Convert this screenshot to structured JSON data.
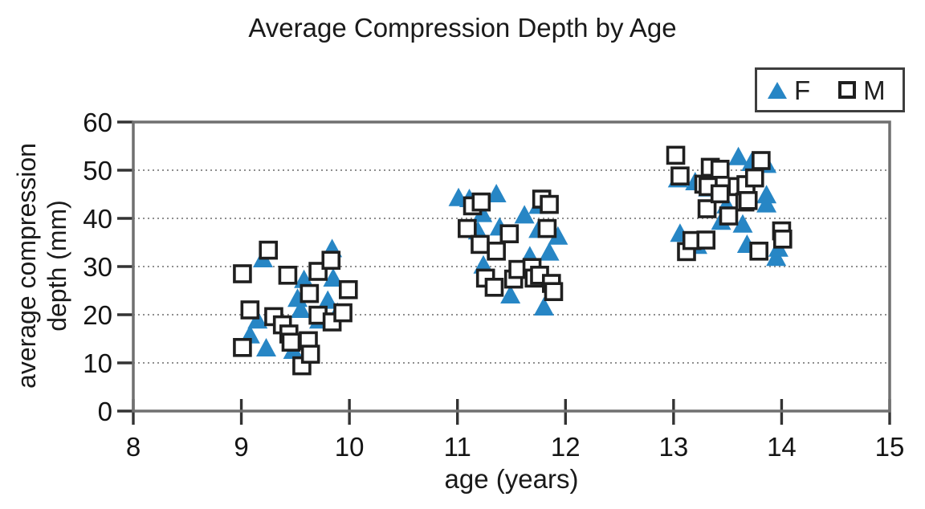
{
  "title": "Average Compression Depth by Age",
  "chart_data": {
    "type": "scatter",
    "title": "Average Compression Depth by Age",
    "xlabel": "age (years)",
    "ylabel": "average compression depth (mm)",
    "ylabel_lines": [
      "average compression",
      "depth (mm)"
    ],
    "xlim": [
      8,
      15
    ],
    "ylim": [
      0,
      60
    ],
    "xticks": [
      8,
      9,
      10,
      11,
      12,
      13,
      14,
      15
    ],
    "yticks": [
      0,
      10,
      20,
      30,
      40,
      50,
      60
    ],
    "grid": {
      "horizontal": true,
      "style": "dotted",
      "color": "#8f8f8f"
    },
    "legend_position": "top-right",
    "colors": {
      "f_fill": "#2786c5",
      "m_stroke": "#1f1f1f",
      "m_fill": "#ffffff",
      "frame": "#707070",
      "tick": "#333333",
      "text": "#141414"
    },
    "series": [
      {
        "name": "F",
        "marker": "triangle",
        "fill": "#2786c5",
        "points": [
          [
            9.08,
            15.7
          ],
          [
            9.15,
            18.8
          ],
          [
            9.2,
            31.5
          ],
          [
            9.23,
            13.0
          ],
          [
            9.48,
            12.5
          ],
          [
            9.52,
            23.3
          ],
          [
            9.55,
            21.0
          ],
          [
            9.58,
            27.2
          ],
          [
            9.72,
            18.8
          ],
          [
            9.8,
            22.9
          ],
          [
            9.84,
            33.6
          ],
          [
            9.85,
            27.5
          ],
          [
            9.89,
            20.4
          ],
          [
            11.01,
            44.2
          ],
          [
            11.11,
            44.0
          ],
          [
            11.19,
            37.3
          ],
          [
            11.23,
            40.9
          ],
          [
            11.24,
            30.2
          ],
          [
            11.36,
            45.0
          ],
          [
            11.39,
            38.1
          ],
          [
            11.49,
            24.0
          ],
          [
            11.62,
            40.6
          ],
          [
            11.64,
            30.1
          ],
          [
            11.67,
            32.1
          ],
          [
            11.75,
            42.6
          ],
          [
            11.75,
            37.6
          ],
          [
            11.8,
            21.5
          ],
          [
            11.85,
            32.9
          ],
          [
            11.93,
            36.2
          ],
          [
            13.04,
            48.1
          ],
          [
            13.06,
            36.8
          ],
          [
            13.2,
            47.5
          ],
          [
            13.22,
            34.3
          ],
          [
            13.32,
            46.2
          ],
          [
            13.44,
            39.3
          ],
          [
            13.49,
            42.7
          ],
          [
            13.6,
            52.7
          ],
          [
            13.64,
            38.7
          ],
          [
            13.68,
            34.5
          ],
          [
            13.72,
            51.5
          ],
          [
            13.86,
            51.1
          ],
          [
            13.86,
            44.8
          ],
          [
            13.86,
            42.9
          ],
          [
            13.95,
            31.8
          ],
          [
            13.97,
            33.7
          ]
        ]
      },
      {
        "name": "M",
        "marker": "open-square",
        "stroke": "#1f1f1f",
        "fill": "#ffffff",
        "points": [
          [
            9.01,
            28.5
          ],
          [
            9.01,
            13.2
          ],
          [
            9.08,
            21.0
          ],
          [
            9.25,
            33.4
          ],
          [
            9.3,
            19.6
          ],
          [
            9.38,
            17.9
          ],
          [
            9.43,
            28.2
          ],
          [
            9.44,
            16.0
          ],
          [
            9.46,
            14.3
          ],
          [
            9.56,
            9.4
          ],
          [
            9.62,
            14.6
          ],
          [
            9.63,
            24.4
          ],
          [
            9.64,
            11.8
          ],
          [
            9.71,
            29.0
          ],
          [
            9.71,
            19.9
          ],
          [
            9.83,
            31.3
          ],
          [
            9.84,
            18.5
          ],
          [
            9.94,
            20.4
          ],
          [
            9.99,
            25.2
          ],
          [
            11.09,
            37.9
          ],
          [
            11.14,
            42.6
          ],
          [
            11.21,
            34.6
          ],
          [
            11.22,
            43.4
          ],
          [
            11.26,
            27.6
          ],
          [
            11.36,
            33.2
          ],
          [
            11.34,
            25.7
          ],
          [
            11.48,
            36.8
          ],
          [
            11.52,
            27.4
          ],
          [
            11.56,
            29.4
          ],
          [
            11.69,
            29.8
          ],
          [
            11.71,
            27.6
          ],
          [
            11.78,
            44.0
          ],
          [
            11.76,
            28.2
          ],
          [
            11.83,
            37.9
          ],
          [
            11.85,
            42.9
          ],
          [
            11.87,
            26.5
          ],
          [
            11.89,
            24.8
          ],
          [
            13.02,
            53.1
          ],
          [
            13.06,
            48.8
          ],
          [
            13.12,
            33.1
          ],
          [
            13.17,
            35.4
          ],
          [
            13.28,
            47.1
          ],
          [
            13.3,
            35.5
          ],
          [
            13.31,
            42.0
          ],
          [
            13.32,
            46.6
          ],
          [
            13.34,
            50.6
          ],
          [
            13.43,
            50.2
          ],
          [
            13.43,
            45.1
          ],
          [
            13.51,
            40.5
          ],
          [
            13.59,
            46.6
          ],
          [
            13.66,
            43.4
          ],
          [
            13.67,
            47.0
          ],
          [
            13.69,
            43.7
          ],
          [
            13.75,
            48.4
          ],
          [
            13.79,
            33.2
          ],
          [
            13.81,
            52.0
          ],
          [
            14.0,
            37.4
          ],
          [
            14.01,
            35.7
          ]
        ]
      }
    ]
  }
}
